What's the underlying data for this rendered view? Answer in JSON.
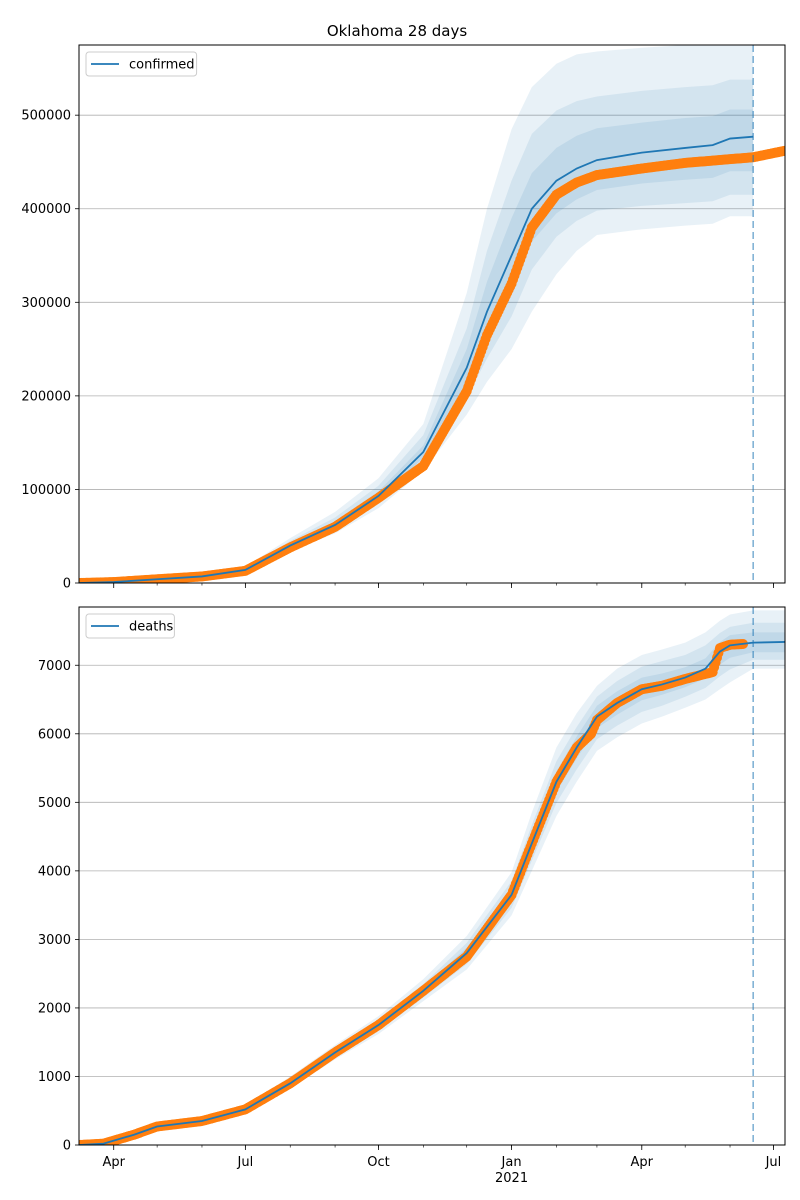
{
  "title": "Oklahoma 28 days",
  "colors": {
    "model": "#1f77b4",
    "observed": "#ff7f0e",
    "band": "#1f77b4",
    "grid": "#b0b0b0"
  },
  "x_ticks": [
    {
      "date": "2020-04-01",
      "label": "Apr"
    },
    {
      "date": "2020-07-01",
      "label": "Jul"
    },
    {
      "date": "2020-10-01",
      "label": "Oct"
    },
    {
      "date": "2021-01-01",
      "label": "Jan"
    },
    {
      "date": "2021-04-01",
      "label": "Apr"
    },
    {
      "date": "2021-07-01",
      "label": "Jul"
    }
  ],
  "x_year_label": "2021",
  "chart_data": [
    {
      "type": "line",
      "title": "Oklahoma 28 days",
      "xlim": [
        "2020-03-08",
        "2021-07-09"
      ],
      "ylim": [
        0,
        575000
      ],
      "y_ticks": [
        0,
        100000,
        200000,
        300000,
        400000,
        500000
      ],
      "grid": "y",
      "legend_placement": "top-left",
      "forecast_date": "2021-06-17",
      "series": [
        {
          "name": "confirmed",
          "kind": "model",
          "x": [
            "2020-03-08",
            "2020-04-01",
            "2020-05-01",
            "2020-06-01",
            "2020-07-01",
            "2020-08-01",
            "2020-09-01",
            "2020-10-01",
            "2020-11-01",
            "2020-12-01",
            "2020-12-15",
            "2021-01-01",
            "2021-01-15",
            "2021-02-01",
            "2021-02-15",
            "2021-03-01",
            "2021-04-01",
            "2021-05-01",
            "2021-05-20",
            "2021-06-01",
            "2021-06-17"
          ],
          "values": [
            0,
            1000,
            4000,
            7000,
            14000,
            40000,
            62000,
            93000,
            140000,
            230000,
            290000,
            350000,
            400000,
            430000,
            443000,
            452000,
            460000,
            465000,
            468000,
            475000,
            477000
          ]
        },
        {
          "name": "",
          "kind": "observed",
          "x": [
            "2020-03-08",
            "2020-04-01",
            "2020-05-01",
            "2020-06-01",
            "2020-07-01",
            "2020-08-01",
            "2020-09-01",
            "2020-10-01",
            "2020-11-01",
            "2020-12-01",
            "2020-12-15",
            "2021-01-01",
            "2021-01-15",
            "2021-02-01",
            "2021-02-15",
            "2021-03-01",
            "2021-04-01",
            "2021-05-01",
            "2021-06-01",
            "2021-06-17",
            "2021-07-09"
          ],
          "values": [
            0,
            1000,
            4000,
            7000,
            13000,
            38000,
            60000,
            91000,
            125000,
            205000,
            265000,
            320000,
            380000,
            415000,
            428000,
            436000,
            443000,
            449000,
            453000,
            455000,
            462000
          ]
        }
      ],
      "bands": [
        {
          "lower": [
            0,
            700,
            3300,
            6000,
            11500,
            34000,
            53000,
            80000,
            120000,
            180000,
            215000,
            250000,
            290000,
            330000,
            355000,
            372000,
            378000,
            382000,
            384000,
            392000,
            392000
          ],
          "upper": [
            0,
            1400,
            5000,
            8500,
            17500,
            48000,
            76000,
            112000,
            170000,
            310000,
            400000,
            485000,
            530000,
            555000,
            565000,
            568000,
            572000,
            575000,
            575000,
            575000,
            575000
          ]
        },
        {
          "lower": [
            0,
            800,
            3500,
            6300,
            12300,
            36000,
            56000,
            85000,
            128000,
            198000,
            240000,
            285000,
            335000,
            370000,
            387000,
            398000,
            403000,
            406000,
            408000,
            415000,
            415000
          ],
          "upper": [
            0,
            1250,
            4600,
            7900,
            16000,
            45000,
            70000,
            104000,
            158000,
            272000,
            355000,
            430000,
            480000,
            505000,
            515000,
            520000,
            526000,
            530000,
            532000,
            538000,
            538000
          ]
        },
        {
          "lower": [
            0,
            900,
            3700,
            6600,
            13000,
            38000,
            59000,
            89000,
            134000,
            212000,
            262000,
            315000,
            365000,
            395000,
            410000,
            420000,
            427000,
            431000,
            433000,
            440000,
            440000
          ],
          "upper": [
            0,
            1100,
            4300,
            7400,
            15000,
            42000,
            66000,
            98000,
            147000,
            250000,
            322000,
            390000,
            438000,
            465000,
            478000,
            486000,
            492000,
            497000,
            499000,
            506000,
            506000
          ]
        }
      ]
    },
    {
      "type": "line",
      "title": "",
      "xlim": [
        "2020-03-08",
        "2021-07-09"
      ],
      "ylim": [
        0,
        7850
      ],
      "y_ticks": [
        0,
        1000,
        2000,
        3000,
        4000,
        5000,
        6000,
        7000
      ],
      "grid": "y",
      "legend_placement": "top-left",
      "forecast_date": "2021-06-17",
      "series": [
        {
          "name": "deaths",
          "kind": "model",
          "x": [
            "2020-03-08",
            "2020-03-25",
            "2020-04-15",
            "2020-05-01",
            "2020-06-01",
            "2020-07-01",
            "2020-08-01",
            "2020-09-01",
            "2020-10-01",
            "2020-11-01",
            "2020-12-01",
            "2021-01-01",
            "2021-01-15",
            "2021-02-01",
            "2021-02-15",
            "2021-03-01",
            "2021-03-15",
            "2021-04-01",
            "2021-04-15",
            "2021-05-01",
            "2021-05-15",
            "2021-05-25",
            "2021-06-01",
            "2021-06-17",
            "2021-07-09"
          ],
          "values": [
            0,
            20,
            150,
            270,
            350,
            520,
            900,
            1350,
            1750,
            2250,
            2800,
            3650,
            4400,
            5300,
            5800,
            6250,
            6450,
            6650,
            6720,
            6820,
            6950,
            7200,
            7290,
            7330,
            7340
          ]
        },
        {
          "name": "",
          "kind": "observed",
          "x": [
            "2020-03-08",
            "2020-03-25",
            "2020-04-15",
            "2020-05-01",
            "2020-06-01",
            "2020-07-01",
            "2020-08-01",
            "2020-09-01",
            "2020-10-01",
            "2020-11-01",
            "2020-12-01",
            "2021-01-01",
            "2021-01-15",
            "2021-02-01",
            "2021-02-15",
            "2021-02-25",
            "2021-03-01",
            "2021-03-15",
            "2021-04-01",
            "2021-04-15",
            "2021-05-01",
            "2021-05-20",
            "2021-05-25",
            "2021-06-01",
            "2021-06-10"
          ],
          "values": [
            0,
            20,
            150,
            270,
            350,
            520,
            900,
            1350,
            1750,
            2250,
            2750,
            3650,
            4400,
            5300,
            5800,
            6000,
            6200,
            6450,
            6650,
            6700,
            6800,
            6900,
            7250,
            7300,
            7310
          ]
        }
      ],
      "bands": [
        {
          "lower": [
            0,
            15,
            120,
            230,
            300,
            470,
            820,
            1250,
            1620,
            2100,
            2560,
            3350,
            4000,
            4800,
            5300,
            5750,
            5950,
            6150,
            6250,
            6380,
            6500,
            6650,
            6750,
            6950,
            6950
          ],
          "upper": [
            0,
            28,
            180,
            310,
            400,
            580,
            1000,
            1460,
            1880,
            2420,
            3050,
            3980,
            4850,
            5800,
            6300,
            6700,
            6950,
            7150,
            7230,
            7330,
            7480,
            7650,
            7740,
            7800,
            7800
          ]
        },
        {
          "lower": [
            0,
            17,
            130,
            245,
            320,
            490,
            850,
            1290,
            1670,
            2150,
            2640,
            3460,
            4150,
            4990,
            5480,
            5920,
            6120,
            6320,
            6410,
            6540,
            6670,
            6840,
            6940,
            7080,
            7080
          ],
          "upper": [
            0,
            25,
            170,
            295,
            380,
            555,
            960,
            1410,
            1830,
            2350,
            2950,
            3850,
            4670,
            5600,
            6100,
            6540,
            6770,
            6980,
            7060,
            7150,
            7290,
            7470,
            7560,
            7620,
            7620
          ]
        },
        {
          "lower": [
            0,
            18,
            140,
            258,
            335,
            505,
            875,
            1320,
            1710,
            2200,
            2710,
            3560,
            4280,
            5150,
            5640,
            6080,
            6280,
            6490,
            6570,
            6680,
            6810,
            7010,
            7110,
            7190,
            7190
          ],
          "upper": [
            0,
            22,
            160,
            282,
            365,
            535,
            925,
            1380,
            1790,
            2300,
            2880,
            3740,
            4520,
            5450,
            5960,
            6410,
            6620,
            6820,
            6880,
            6970,
            7100,
            7340,
            7440,
            7480,
            7480
          ]
        }
      ]
    }
  ]
}
